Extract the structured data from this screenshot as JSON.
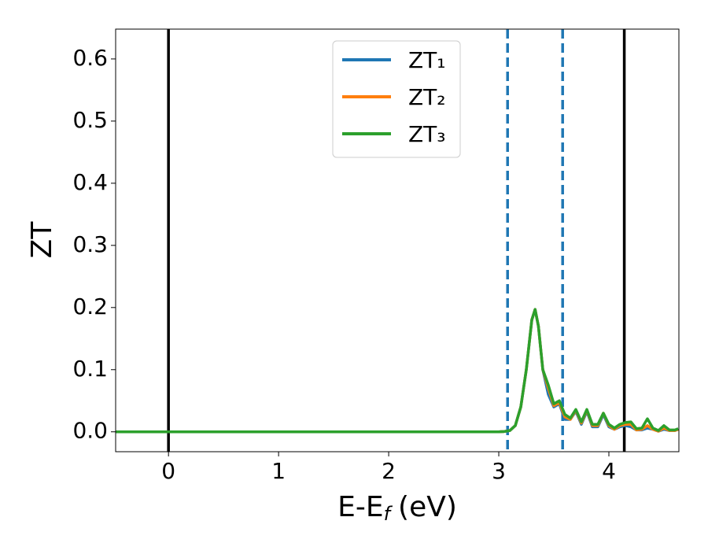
{
  "chart_data": {
    "type": "line",
    "xlabel": {
      "main": "E-E",
      "sub": "f",
      "unit": "(eV)"
    },
    "ylabel": "ZT",
    "x": [
      -0.48,
      0,
      1,
      2,
      3.0,
      3.05,
      3.1,
      3.15,
      3.2,
      3.25,
      3.3,
      3.33,
      3.36,
      3.4,
      3.45,
      3.5,
      3.55,
      3.6,
      3.65,
      3.7,
      3.75,
      3.8,
      3.85,
      3.9,
      3.95,
      4.0,
      4.05,
      4.1,
      4.15,
      4.2,
      4.25,
      4.3,
      4.35,
      4.4,
      4.45,
      4.5,
      4.55,
      4.6,
      4.63
    ],
    "series": [
      {
        "name": "ZT₁",
        "color": "#1f77b4",
        "values": [
          0,
          0,
          0,
          0,
          0,
          0.0005,
          0.002,
          0.01,
          0.04,
          0.1,
          0.18,
          0.197,
          0.17,
          0.1,
          0.06,
          0.04,
          0.045,
          0.02,
          0.02,
          0.033,
          0.012,
          0.033,
          0.008,
          0.008,
          0.028,
          0.008,
          0.004,
          0.008,
          0.01,
          0.008,
          0.003,
          0.003,
          0.006,
          0.004,
          0.001,
          0.004,
          0.002,
          0.002,
          0.004
        ]
      },
      {
        "name": "ZT₂",
        "color": "#ff7f0e",
        "values": [
          0,
          0,
          0,
          0,
          0,
          0.0005,
          0.002,
          0.01,
          0.04,
          0.1,
          0.18,
          0.197,
          0.17,
          0.1,
          0.07,
          0.042,
          0.047,
          0.024,
          0.02,
          0.035,
          0.014,
          0.035,
          0.01,
          0.01,
          0.03,
          0.01,
          0.004,
          0.01,
          0.012,
          0.012,
          0.003,
          0.004,
          0.01,
          0.004,
          0.001,
          0.006,
          0.002,
          0.002,
          0.004
        ]
      },
      {
        "name": "ZT₃",
        "color": "#2ca02c",
        "values": [
          0,
          0,
          0,
          0,
          0,
          0.0005,
          0.002,
          0.01,
          0.04,
          0.1,
          0.18,
          0.197,
          0.17,
          0.1,
          0.075,
          0.045,
          0.05,
          0.028,
          0.022,
          0.036,
          0.016,
          0.036,
          0.012,
          0.012,
          0.03,
          0.012,
          0.006,
          0.012,
          0.015,
          0.016,
          0.005,
          0.006,
          0.021,
          0.006,
          0.002,
          0.01,
          0.003,
          0.003,
          0.005
        ]
      }
    ],
    "vlines": [
      {
        "x": 0,
        "color": "#000000",
        "dashed": false
      },
      {
        "x": 4.14,
        "color": "#000000",
        "dashed": false
      },
      {
        "x": 3.08,
        "color": "#1f77b4",
        "dashed": true
      },
      {
        "x": 3.58,
        "color": "#1f77b4",
        "dashed": true
      }
    ],
    "xlim": [
      -0.48,
      4.636
    ],
    "ylim": [
      -0.032,
      0.648
    ],
    "xticks": [
      0,
      1,
      2,
      3,
      4
    ],
    "yticks": [
      {
        "value": 0,
        "label": "0.0"
      },
      0.1,
      0.2,
      0.3,
      0.4,
      0.5,
      0.6
    ],
    "legend": "upper center"
  }
}
